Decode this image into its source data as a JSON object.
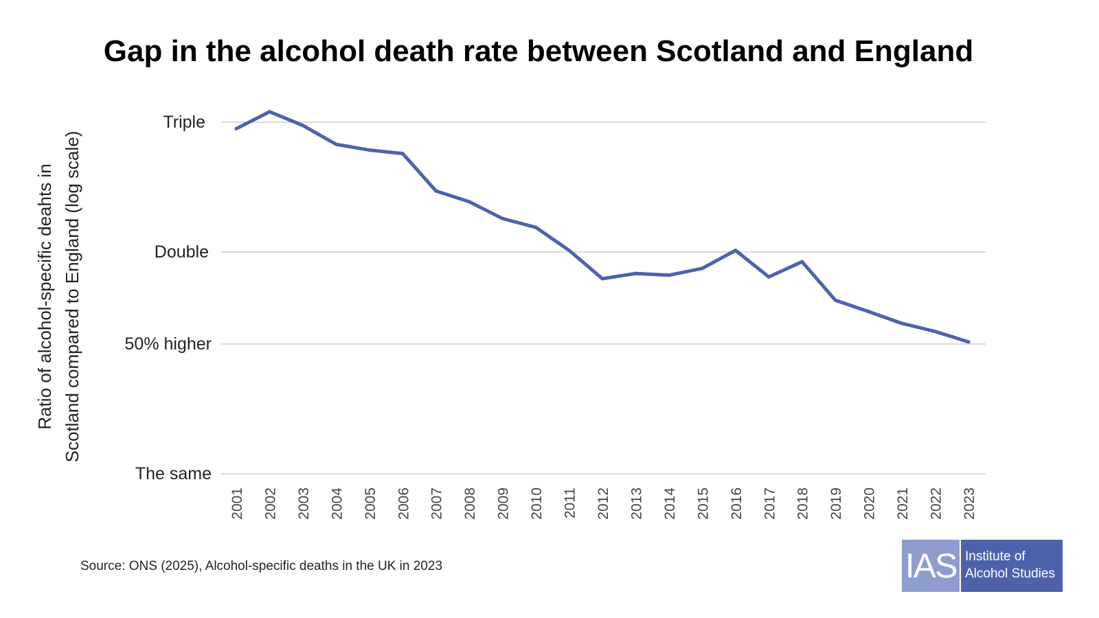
{
  "chart_data": {
    "type": "line",
    "title": "Gap in the alcohol death rate between Scotland and England",
    "ylabel": "Ratio of alcohol-specific deahts in Scotland compared to England  (log scale)",
    "ylabel_lines": [
      "Ratio of alcohol-specific deahts in",
      "Scotland compared to England  (log scale)"
    ],
    "xlabel": "",
    "y_scale": "log",
    "ylim": [
      1,
      3.1
    ],
    "grid": true,
    "y_ticks": [
      {
        "value": 3,
        "label": "Triple"
      },
      {
        "value": 2,
        "label": "Double"
      },
      {
        "value": 1.5,
        "label": "50% higher"
      },
      {
        "value": 1,
        "label": "The same"
      }
    ],
    "categories": [
      "2001",
      "2002",
      "2003",
      "2004",
      "2005",
      "2006",
      "2007",
      "2008",
      "2009",
      "2010",
      "2011",
      "2012",
      "2013",
      "2014",
      "2015",
      "2016",
      "2017",
      "2018",
      "2019",
      "2020",
      "2021",
      "2022",
      "2023"
    ],
    "values": [
      2.94,
      3.1,
      2.97,
      2.8,
      2.75,
      2.72,
      2.42,
      2.34,
      2.22,
      2.16,
      2.01,
      1.84,
      1.87,
      1.86,
      1.9,
      2.01,
      1.85,
      1.94,
      1.72,
      1.66,
      1.6,
      1.56,
      1.51
    ],
    "line_color": "#4e62ac",
    "source": "Source: ONS (2025), Alcohol-specific deaths in the UK in 2023"
  },
  "logo": {
    "abbr": "IAS",
    "line1": "Institute of",
    "line2": "Alcohol Studies",
    "colors": [
      "#8f9dce",
      "#4e62ac"
    ]
  }
}
